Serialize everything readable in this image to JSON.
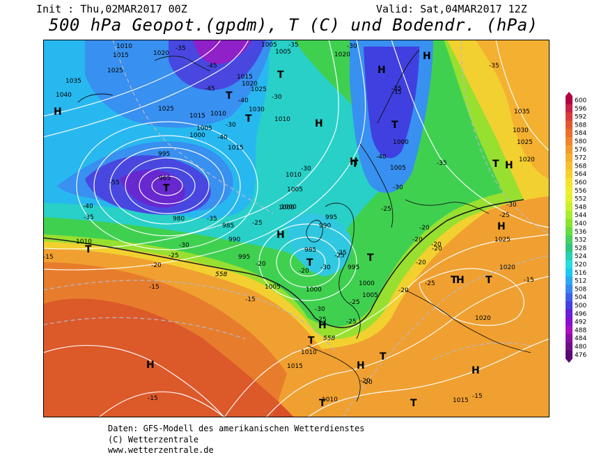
{
  "header": {
    "init": "Init : Thu,02MAR2017 00Z",
    "valid": "Valid: Sat,04MAR2017 12Z",
    "title": "500 hPa Geopot.(gpdm), T (C) und Bodendr. (hPa)"
  },
  "footer": {
    "line1": "Daten: GFS-Modell des amerikanischen Wetterdienstes",
    "line2": "(C) Wetterzentrale",
    "line3": "www.wetterzentrale.de"
  },
  "scale": {
    "labels": [
      "600",
      "596",
      "592",
      "588",
      "584",
      "580",
      "576",
      "572",
      "568",
      "564",
      "560",
      "556",
      "552",
      "548",
      "544",
      "540",
      "536",
      "532",
      "528",
      "524",
      "520",
      "516",
      "512",
      "508",
      "504",
      "500",
      "496",
      "492",
      "488",
      "484",
      "480",
      "476"
    ],
    "colors": [
      "#b00040",
      "#c8204a",
      "#d83c3c",
      "#e05a30",
      "#e87030",
      "#f08430",
      "#f29a30",
      "#f4ae30",
      "#f6c030",
      "#f8d030",
      "#f8e030",
      "#f0ec30",
      "#e0f030",
      "#c8f030",
      "#a8ec30",
      "#88e430",
      "#68dc40",
      "#48d060",
      "#30c480",
      "#28d0b8",
      "#28dce0",
      "#20c8f0",
      "#30a8f0",
      "#3888f0",
      "#4060e8",
      "#4840e0",
      "#6820d8",
      "#8810d0",
      "#a810c0",
      "#8810a0",
      "#701088",
      "#580870"
    ]
  },
  "map_labels": {
    "highs": [
      "H",
      "H",
      "H",
      "H",
      "H",
      "H",
      "H",
      "H",
      "H",
      "H",
      "H",
      "H",
      "H"
    ],
    "lows": [
      "T",
      "T",
      "T",
      "T",
      "T",
      "T",
      "T",
      "T",
      "T",
      "T",
      "T",
      "T",
      "T",
      "T",
      "T",
      "T"
    ],
    "isobars": [
      "1010",
      "1015",
      "1025",
      "1020",
      "1035",
      "1040",
      "1025",
      "1015",
      "1010",
      "1005",
      "1000",
      "995",
      "965",
      "1015",
      "1020",
      "1025",
      "1030",
      "1010",
      "1005",
      "1020",
      "1005",
      "1035",
      "1030",
      "1025",
      "1020",
      "1000",
      "1015",
      "1010",
      "1005",
      "1000",
      "995",
      "990",
      "985",
      "995",
      "1000",
      "1005",
      "980",
      "985",
      "990",
      "995",
      "1005",
      "1000",
      "1000",
      "1005",
      "1010",
      "1015",
      "1010",
      "1020",
      "1025",
      "1020",
      "1015",
      "1010",
      "1035"
    ],
    "temps": [
      "-45",
      "-45",
      "-35",
      "-40",
      "-30",
      "-30",
      "-35",
      "-30",
      "-30",
      "-25",
      "-55",
      "-40",
      "-35",
      "-35",
      "-30",
      "-25",
      "-25",
      "-20",
      "-30",
      "-25",
      "-25",
      "-20",
      "-20",
      "-25",
      "-15",
      "-15",
      "-20",
      "-20",
      "-25",
      "-30",
      "-30",
      "-35",
      "-35",
      "-40",
      "-35",
      "-25",
      "-20",
      "-25",
      "-20",
      "-20",
      "-25",
      "-15",
      "-20",
      "-15",
      "-15",
      "-15",
      "-20",
      "-20",
      "-35",
      "-40",
      "-30"
    ],
    "contours_558": [
      "558",
      "558"
    ]
  }
}
